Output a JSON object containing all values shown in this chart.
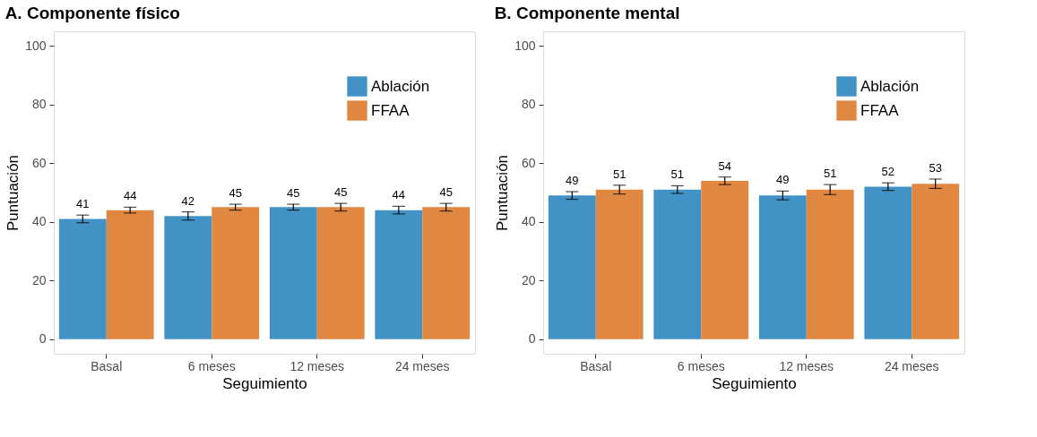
{
  "chart_data": [
    {
      "type": "bar",
      "title": "A. Componente físico",
      "xlabel": "Seguimiento",
      "ylabel": "Puntuación",
      "categories": [
        "Basal",
        "6 meses",
        "12 meses",
        "24 meses"
      ],
      "series": [
        {
          "name": "Ablación",
          "color": "#4292c6",
          "values": [
            41,
            42,
            45,
            44
          ],
          "errors": [
            1.3,
            1.4,
            1.0,
            1.3
          ]
        },
        {
          "name": "FFAA",
          "color": "#e08742",
          "values": [
            44,
            45,
            45,
            45
          ],
          "errors": [
            1.0,
            1.0,
            1.3,
            1.3
          ]
        }
      ],
      "ylim": [
        -5,
        105
      ],
      "yticks": [
        0,
        20,
        40,
        60,
        80,
        100
      ],
      "grid": false,
      "legend": "top right",
      "data_labels": true
    },
    {
      "type": "bar",
      "title": "B. Componente mental",
      "xlabel": "Seguimiento",
      "ylabel": "Puntuación",
      "categories": [
        "Basal",
        "6 meses",
        "12 meses",
        "24 meses"
      ],
      "series": [
        {
          "name": "Ablación",
          "color": "#4292c6",
          "values": [
            49,
            51,
            49,
            52
          ],
          "errors": [
            1.3,
            1.3,
            1.5,
            1.3
          ]
        },
        {
          "name": "FFAA",
          "color": "#e08742",
          "values": [
            51,
            54,
            51,
            53
          ],
          "errors": [
            1.5,
            1.3,
            1.7,
            1.6
          ]
        }
      ],
      "ylim": [
        -5,
        105
      ],
      "yticks": [
        0,
        20,
        40,
        60,
        80,
        100
      ],
      "grid": false,
      "legend": "top right",
      "data_labels": true
    }
  ]
}
